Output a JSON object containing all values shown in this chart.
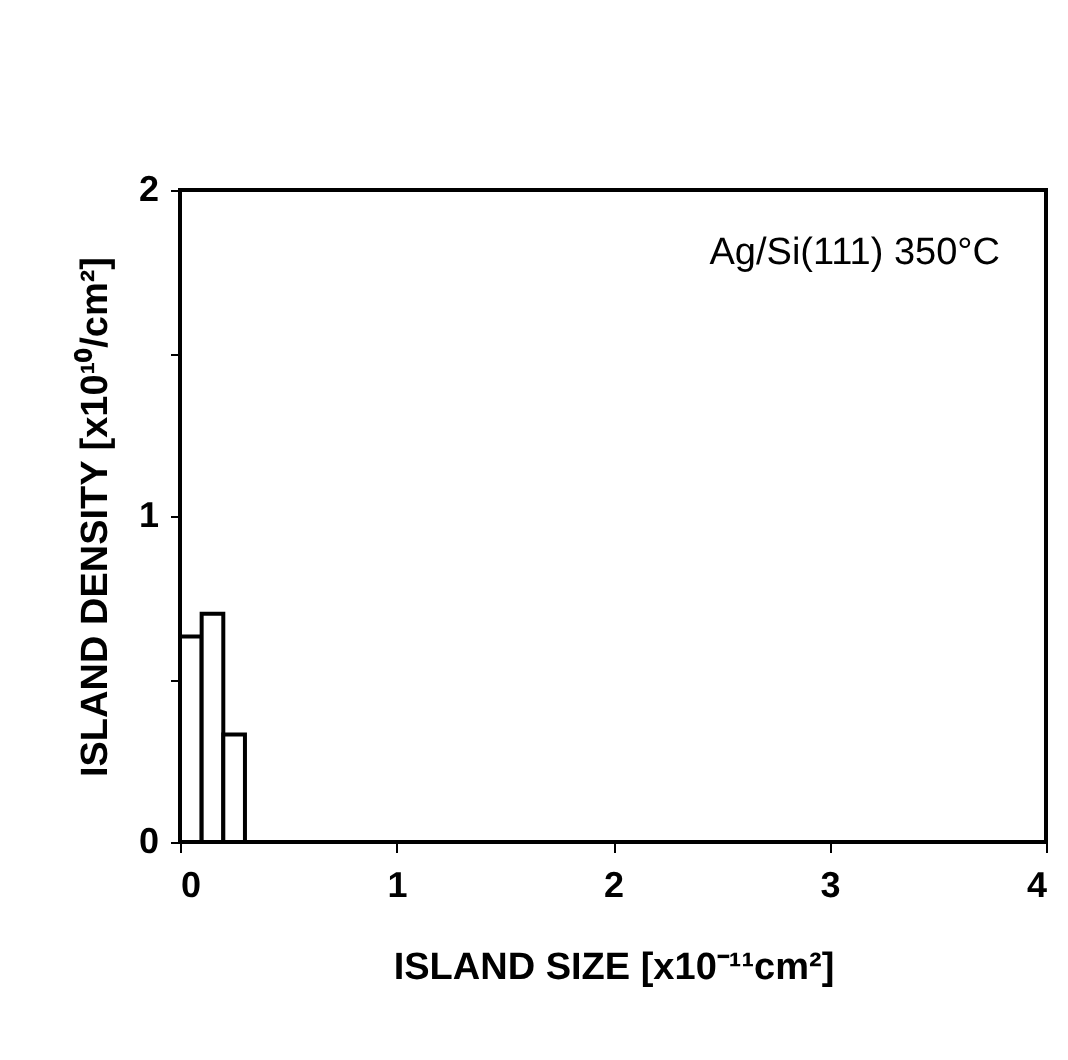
{
  "chart_data": {
    "type": "histogram",
    "bins": [
      0,
      0.1,
      0.2,
      0.3
    ],
    "values": [
      0.63,
      0.7,
      0.33
    ],
    "color": "#000000",
    "xlabel": "ISLAND SIZE [x10⁻¹¹cm²]",
    "ylabel": "ISLAND DENSITY [x10¹⁰/cm²]",
    "annotations": [
      "Ag/Si(111) 350°C"
    ],
    "xlim": [
      0,
      4
    ],
    "xticks": [
      0,
      1,
      2,
      3,
      4
    ],
    "ylim": [
      0,
      2
    ],
    "yticks": [
      0,
      {
        "value": 0.5,
        "label": null
      },
      1,
      {
        "value": 1.5,
        "label": null
      },
      2
    ]
  }
}
